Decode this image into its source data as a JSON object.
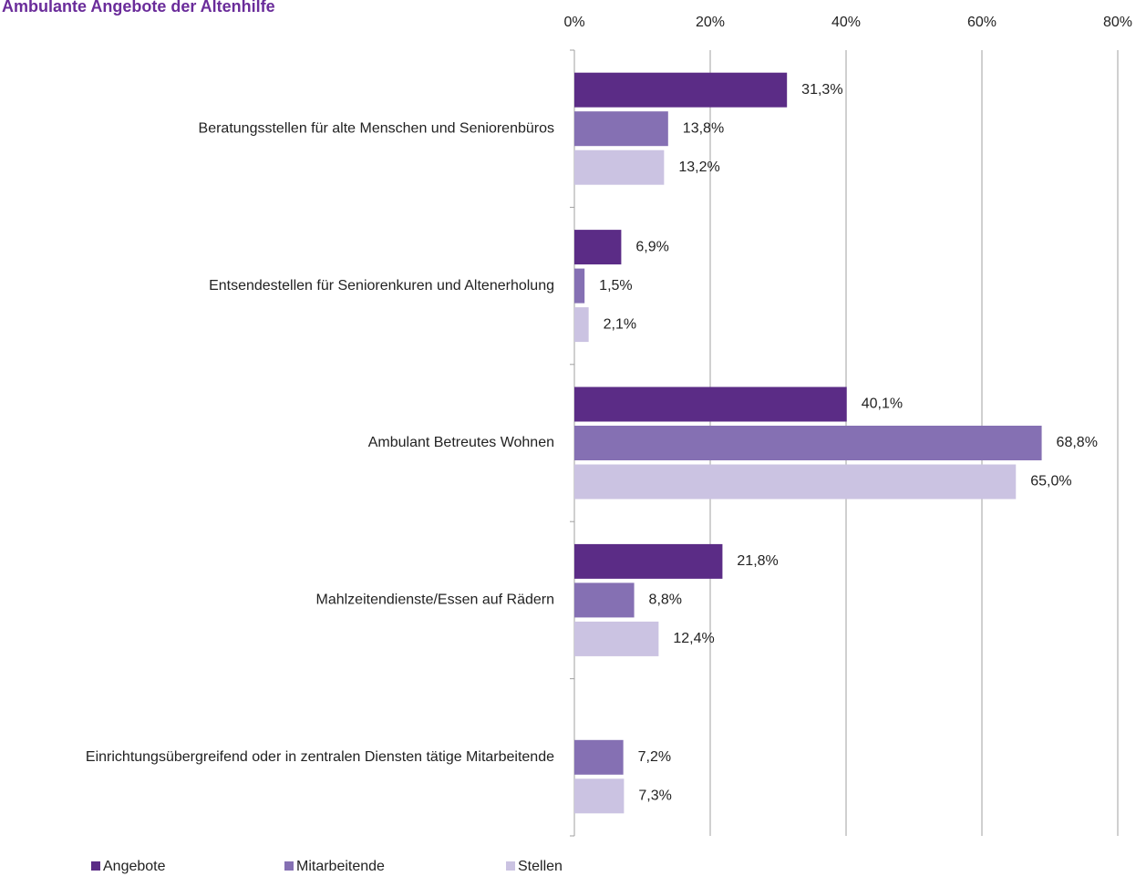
{
  "chart_data": {
    "type": "bar",
    "orientation": "horizontal",
    "title": "Ambulante Angebote der Altenhilfe",
    "categories": [
      "Beratungsstellen für alte Menschen und Seniorenbüros",
      "Entsendestellen für Seniorenkuren und Altenerholung",
      "Ambulant Betreutes Wohnen",
      "Mahlzeitendienste/Essen auf Rädern",
      "Einrichtungsübergreifend oder in zentralen Diensten tätige Mitarbeitende"
    ],
    "series": [
      {
        "name": "Angebote",
        "color": "#5b2c86",
        "values": [
          31.3,
          6.9,
          40.1,
          21.8,
          null
        ],
        "value_labels": [
          "31,3%",
          "6,9%",
          "40,1%",
          "21,8%",
          null
        ]
      },
      {
        "name": "Mitarbeitende",
        "color": "#8570b3",
        "values": [
          13.8,
          1.5,
          68.8,
          8.8,
          7.2
        ],
        "value_labels": [
          "13,8%",
          "1,5%",
          "68,8%",
          "8,8%",
          "7,2%"
        ]
      },
      {
        "name": "Stellen",
        "color": "#cbc3e2",
        "values": [
          13.2,
          2.1,
          65.0,
          12.4,
          7.3
        ],
        "value_labels": [
          "13,2%",
          "2,1%",
          "65,0%",
          "12,4%",
          "7,3%"
        ]
      }
    ],
    "xlim": [
      0,
      80
    ],
    "xticks": [
      {
        "value": 0,
        "label": "0%"
      },
      {
        "value": 20,
        "label": "20%"
      },
      {
        "value": 40,
        "label": "40%"
      },
      {
        "value": 60,
        "label": "60%"
      },
      {
        "value": 80,
        "label": "80%"
      }
    ],
    "grid": true,
    "legend": "bottom"
  }
}
